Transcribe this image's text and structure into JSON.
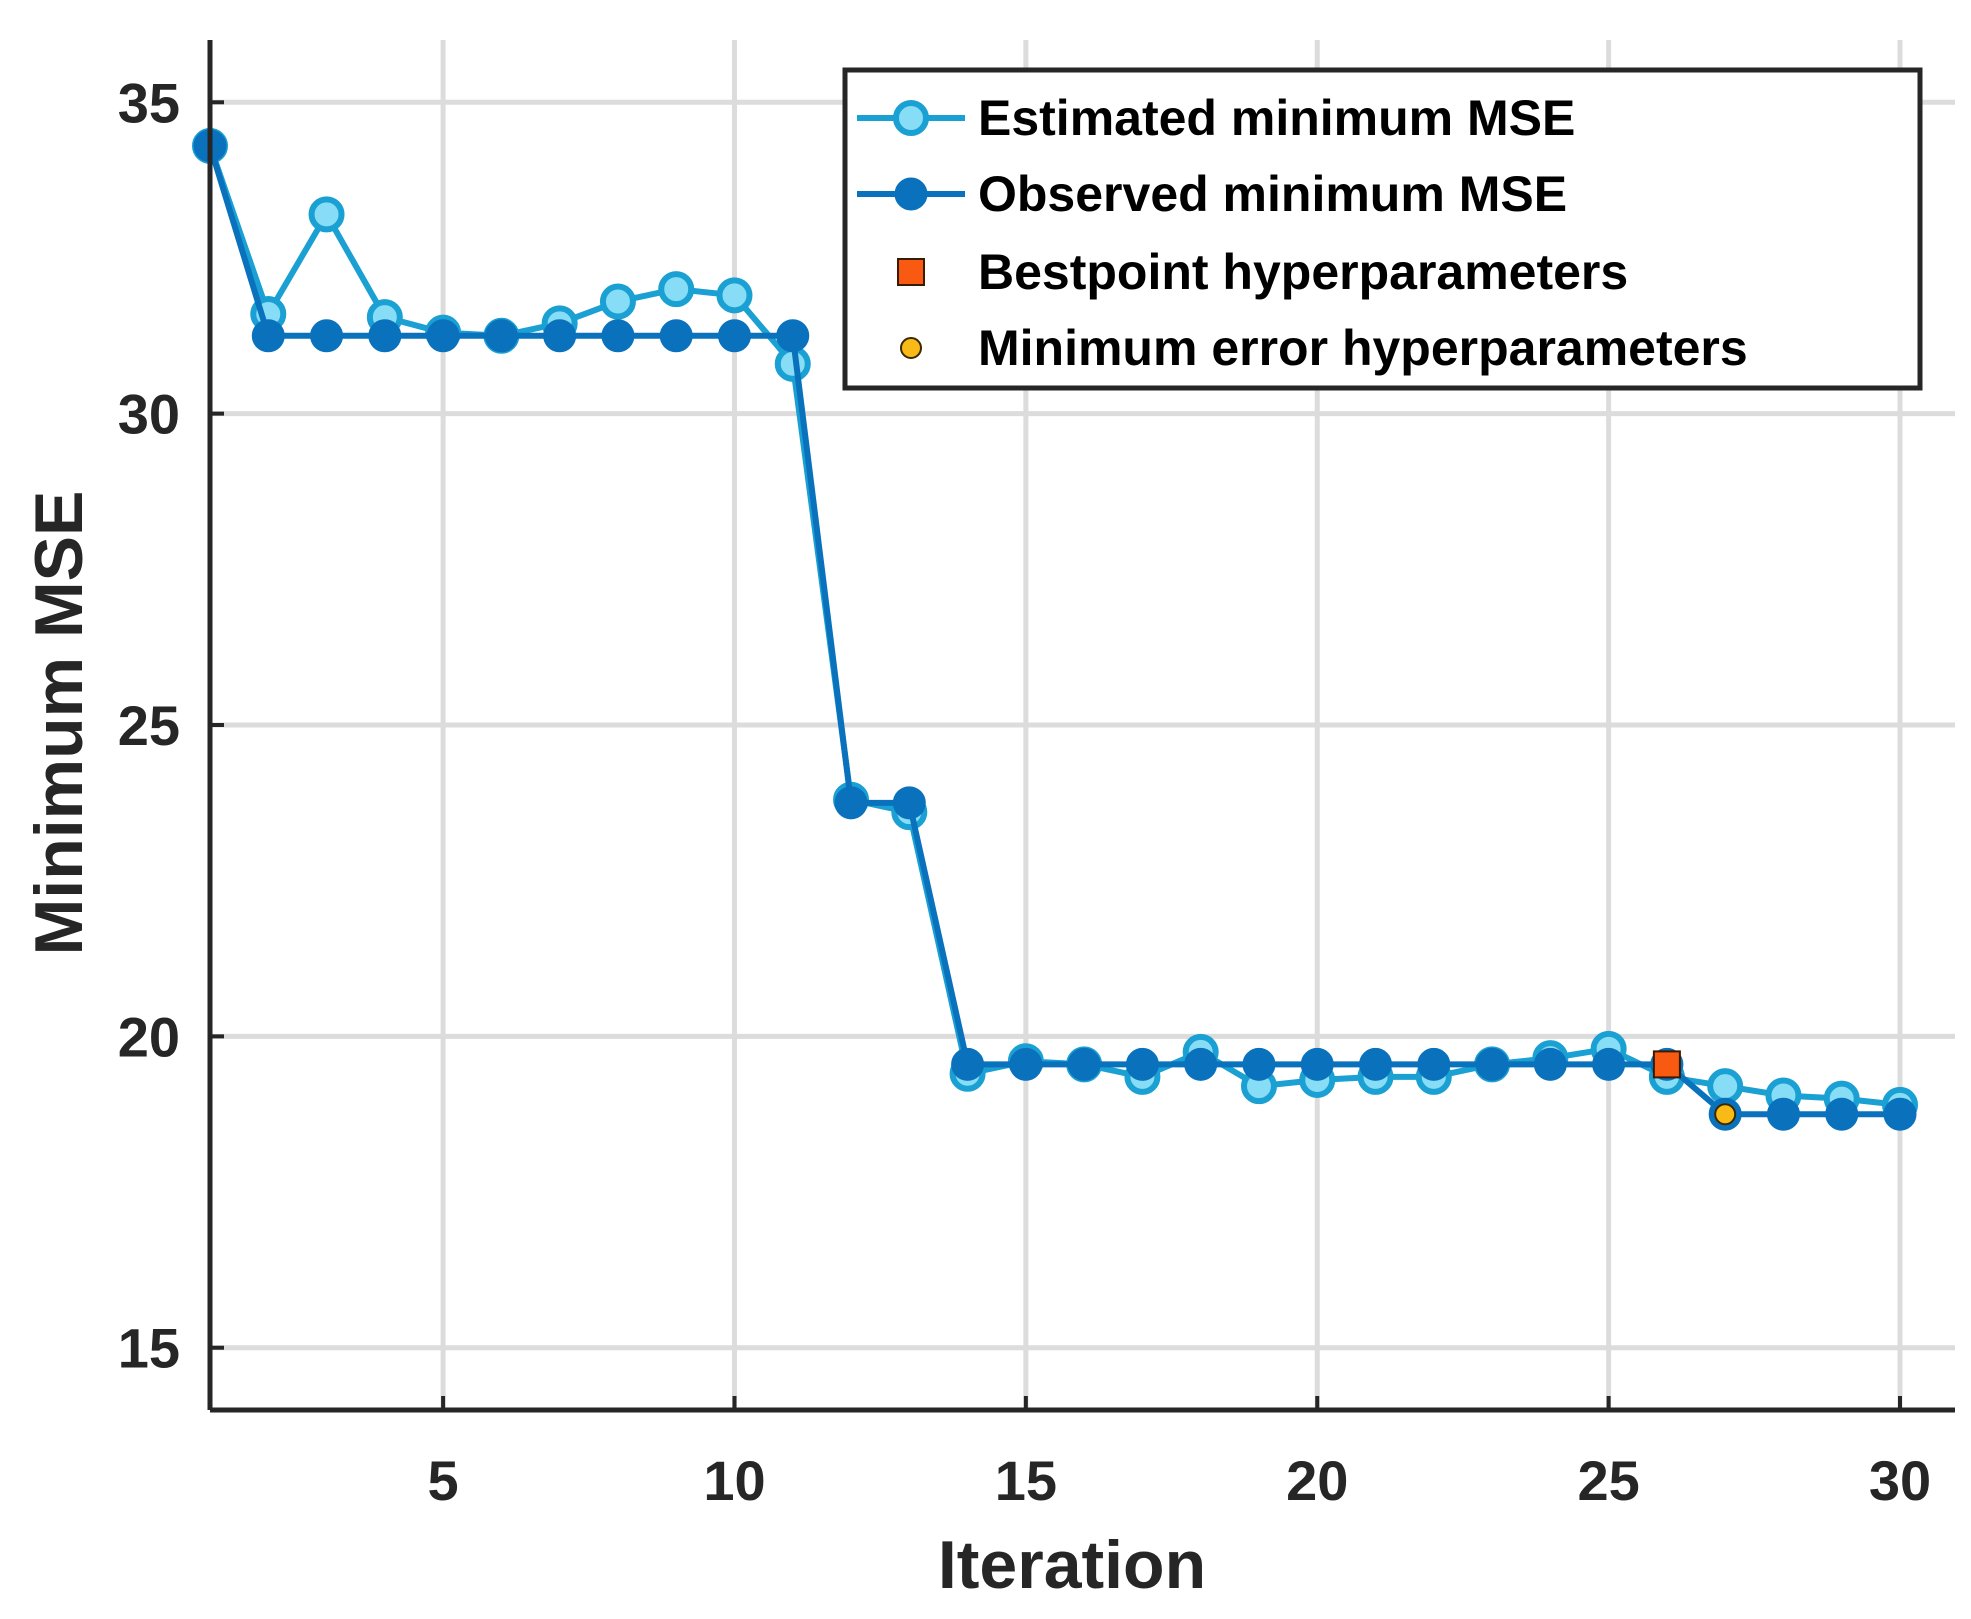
{
  "chart_data": {
    "type": "line",
    "xlabel": "Iteration",
    "ylabel": "Minimum MSE",
    "xlim": [
      1,
      30
    ],
    "ylim": [
      14,
      36
    ],
    "xticks": [
      5,
      10,
      15,
      20,
      25,
      30
    ],
    "yticks": [
      15,
      20,
      25,
      30,
      35
    ],
    "xtick_labels": [
      "5",
      "10",
      "15",
      "20",
      "25",
      "30"
    ],
    "ytick_labels": [
      "15",
      "20",
      "25",
      "30",
      "35"
    ],
    "grid": true,
    "legend_position": "top-right",
    "x": [
      1,
      2,
      3,
      4,
      5,
      6,
      7,
      8,
      9,
      10,
      11,
      12,
      13,
      14,
      15,
      16,
      17,
      18,
      19,
      20,
      21,
      22,
      23,
      24,
      25,
      26,
      27,
      28,
      29,
      30
    ],
    "series": [
      {
        "name": "Estimated minimum MSE",
        "marker": "open-circle",
        "line_color": "#1AA0D3",
        "marker_fill": "#86DDF5",
        "values": [
          34.3,
          31.6,
          33.2,
          31.55,
          31.3,
          31.25,
          31.45,
          31.8,
          32.0,
          31.9,
          30.8,
          23.8,
          23.6,
          19.4,
          19.6,
          19.55,
          19.35,
          19.75,
          19.2,
          19.3,
          19.35,
          19.35,
          19.55,
          19.65,
          19.8,
          19.35,
          19.2,
          19.05,
          19.0,
          18.9
        ]
      },
      {
        "name": "Observed minimum MSE",
        "marker": "filled-circle",
        "line_color": "#0A72BD",
        "marker_fill": "#0A72BD",
        "values": [
          34.3,
          31.25,
          31.25,
          31.25,
          31.25,
          31.25,
          31.25,
          31.25,
          31.25,
          31.25,
          31.25,
          23.75,
          23.75,
          19.55,
          19.55,
          19.55,
          19.55,
          19.55,
          19.55,
          19.55,
          19.55,
          19.55,
          19.55,
          19.55,
          19.55,
          19.55,
          18.75,
          18.75,
          18.75,
          18.75
        ]
      }
    ],
    "points": [
      {
        "name": "Bestpoint hyperparameters",
        "marker": "square",
        "color": "#F75A10",
        "x": 26,
        "y": 19.55
      },
      {
        "name": "Minimum error hyperparameters",
        "marker": "small-circle",
        "color": "#F9B916",
        "x": 27,
        "y": 18.75
      }
    ],
    "legend": [
      "Estimated minimum MSE",
      "Observed minimum MSE",
      "Bestpoint hyperparameters",
      "Minimum error hyperparameters"
    ]
  }
}
